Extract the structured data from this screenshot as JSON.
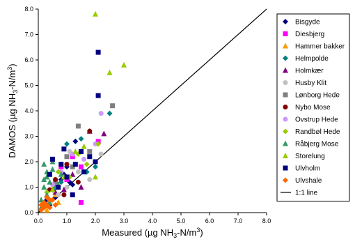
{
  "chart_data": {
    "type": "scatter",
    "title": "",
    "xlabel": {
      "pre": "Measured (µg NH",
      "sub": "3",
      "mid": "-N/m",
      "sup": "3",
      "post": ")"
    },
    "ylabel": {
      "pre": "DAMOS (µg NH",
      "sub": "3",
      "mid": "-N/m",
      "sup": "3",
      "post": ")"
    },
    "xlim": [
      0,
      8
    ],
    "ylim": [
      0,
      8
    ],
    "xticks": [
      "0.0",
      "1.0",
      "2.0",
      "3.0",
      "4.0",
      "5.0",
      "6.0",
      "7.0",
      "8.0"
    ],
    "yticks": [
      "0.0",
      "1.0",
      "2.0",
      "3.0",
      "4.0",
      "5.0",
      "6.0",
      "7.0",
      "8.0"
    ],
    "grid": false,
    "legend_position": "right",
    "reference_line": {
      "name": "1:1 line",
      "x": [
        0,
        8
      ],
      "y": [
        0,
        8
      ],
      "color": "#000000"
    },
    "series": [
      {
        "name": "Bisgyde",
        "marker": "diamond",
        "color": "#000080",
        "points": [
          [
            0.3,
            0.5
          ],
          [
            0.5,
            0.9
          ],
          [
            0.8,
            1.3
          ],
          [
            1.0,
            1.8
          ],
          [
            1.3,
            2.8
          ],
          [
            1.2,
            1.1
          ],
          [
            0.6,
            0.6
          ],
          [
            0.9,
            1.5
          ],
          [
            0.4,
            0.3
          ],
          [
            1.1,
            1.2
          ]
        ]
      },
      {
        "name": "Diesbjerg",
        "marker": "square",
        "color": "#ff00ff",
        "points": [
          [
            1.5,
            0.4
          ],
          [
            0.6,
            1.0
          ],
          [
            1.0,
            1.3
          ],
          [
            1.5,
            1.8
          ],
          [
            2.1,
            2.8
          ],
          [
            0.3,
            0.3
          ],
          [
            1.2,
            2.2
          ],
          [
            0.8,
            1.8
          ]
        ]
      },
      {
        "name": "Hammer bakker",
        "marker": "triangle",
        "color": "#ff9900",
        "points": [
          [
            0.2,
            0.3
          ],
          [
            0.4,
            0.5
          ],
          [
            0.6,
            0.7
          ],
          [
            0.3,
            0.1
          ],
          [
            0.5,
            0.9
          ],
          [
            0.1,
            0.2
          ],
          [
            0.7,
            0.4
          ]
        ]
      },
      {
        "name": "Helmpolde",
        "marker": "diamond",
        "color": "#008080",
        "points": [
          [
            2.5,
            3.9
          ],
          [
            1.0,
            2.7
          ],
          [
            1.5,
            2.9
          ],
          [
            2.0,
            1.8
          ],
          [
            0.8,
            1.2
          ],
          [
            1.7,
            1.6
          ]
        ]
      },
      {
        "name": "Holmkær",
        "marker": "triangle",
        "color": "#800080",
        "points": [
          [
            2.3,
            3.1
          ],
          [
            1.8,
            3.2
          ],
          [
            1.2,
            1.5
          ],
          [
            0.9,
            0.9
          ],
          [
            1.5,
            1.0
          ],
          [
            0.6,
            0.8
          ]
        ]
      },
      {
        "name": "Husby Klit",
        "marker": "circle",
        "color": "#c0c0c0",
        "points": [
          [
            2.2,
            2.3
          ],
          [
            1.0,
            1.0
          ],
          [
            1.4,
            1.6
          ],
          [
            0.7,
            0.7
          ],
          [
            1.8,
            1.3
          ],
          [
            1.1,
            2.4
          ]
        ]
      },
      {
        "name": "Lønborg Hede",
        "marker": "square",
        "color": "#808080",
        "points": [
          [
            2.6,
            4.2
          ],
          [
            1.4,
            3.4
          ],
          [
            1.0,
            2.2
          ],
          [
            1.8,
            2.4
          ],
          [
            0.6,
            1.2
          ],
          [
            1.2,
            1.8
          ]
        ]
      },
      {
        "name": "Nybo Mose",
        "marker": "circle",
        "color": "#800000",
        "points": [
          [
            1.8,
            3.2
          ],
          [
            1.0,
            1.9
          ],
          [
            0.6,
            1.3
          ],
          [
            1.4,
            1.2
          ],
          [
            0.4,
            0.9
          ],
          [
            0.9,
            0.7
          ]
        ]
      },
      {
        "name": "Ovstrup Hede",
        "marker": "circle",
        "color": "#cc99ff",
        "points": [
          [
            2.2,
            3.9
          ],
          [
            1.2,
            2.3
          ],
          [
            0.8,
            1.6
          ],
          [
            1.6,
            2.1
          ],
          [
            0.5,
            1.1
          ],
          [
            2.0,
            2.7
          ]
        ]
      },
      {
        "name": "Randbøl Hede",
        "marker": "diamond",
        "color": "#99cc00",
        "points": [
          [
            2.1,
            2.7
          ],
          [
            1.4,
            2.3
          ],
          [
            0.7,
            1.6
          ],
          [
            1.1,
            1.4
          ],
          [
            0.3,
            0.8
          ],
          [
            1.7,
            1.9
          ]
        ]
      },
      {
        "name": "Råbjerg Mose",
        "marker": "triangle",
        "color": "#339966",
        "points": [
          [
            0.1,
            0.2
          ],
          [
            0.2,
            1.0
          ],
          [
            0.3,
            1.4
          ],
          [
            0.2,
            1.9
          ],
          [
            0.4,
            1.2
          ],
          [
            0.5,
            1.7
          ],
          [
            0.3,
            0.7
          ],
          [
            0.6,
            1.0
          ],
          [
            0.1,
            0.5
          ],
          [
            0.4,
            0.4
          ],
          [
            0.8,
            1.5
          ],
          [
            0.5,
            2.0
          ],
          [
            0.2,
            1.3
          ],
          [
            0.7,
            1.1
          ],
          [
            0.3,
            1.6
          ]
        ]
      },
      {
        "name": "Storelung",
        "marker": "triangle",
        "color": "#99cc00",
        "points": [
          [
            2.0,
            7.8
          ],
          [
            3.0,
            5.8
          ],
          [
            2.5,
            5.5
          ],
          [
            1.3,
            2.4
          ],
          [
            0.9,
            1.4
          ],
          [
            0.5,
            0.9
          ],
          [
            2.0,
            1.4
          ],
          [
            1.6,
            2.6
          ]
        ]
      },
      {
        "name": "Ulvholm",
        "marker": "square",
        "color": "#000080",
        "points": [
          [
            2.1,
            6.3
          ],
          [
            2.1,
            4.6
          ],
          [
            1.5,
            2.4
          ],
          [
            0.9,
            2.5
          ],
          [
            0.5,
            2.1
          ],
          [
            1.0,
            1.4
          ],
          [
            0.7,
            1.0
          ],
          [
            1.2,
            0.7
          ],
          [
            1.8,
            2.2
          ],
          [
            1.3,
            1.9
          ],
          [
            0.4,
            1.5
          ],
          [
            0.8,
            1.9
          ],
          [
            1.6,
            1.6
          ],
          [
            2.0,
            2.0
          ]
        ]
      },
      {
        "name": "Ulvshale",
        "marker": "diamond",
        "color": "#ff6600",
        "points": [
          [
            0.1,
            0.1
          ],
          [
            0.2,
            0.2
          ],
          [
            0.3,
            0.3
          ],
          [
            0.4,
            0.2
          ],
          [
            0.2,
            0.4
          ],
          [
            0.5,
            0.5
          ],
          [
            0.3,
            0.6
          ],
          [
            0.6,
            0.3
          ],
          [
            0.1,
            0.3
          ],
          [
            0.4,
            0.5
          ]
        ]
      }
    ]
  }
}
